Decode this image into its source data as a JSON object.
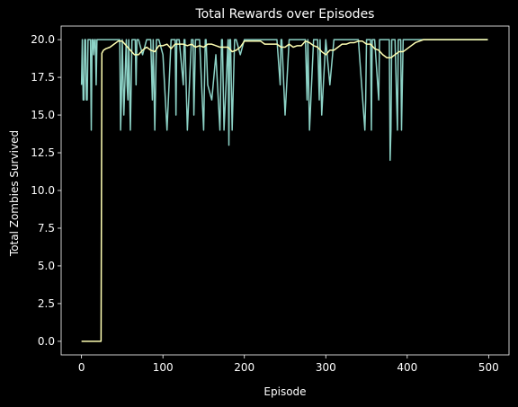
{
  "chart_data": {
    "type": "line",
    "title": "Total Rewards over Episodes",
    "xlabel": "Episode",
    "ylabel": "Total Zombies Survived",
    "xlim": [
      -25,
      525
    ],
    "ylim": [
      -0.9,
      20.9
    ],
    "xticks": [
      0,
      100,
      200,
      300,
      400,
      500
    ],
    "xtick_labels": [
      "0",
      "100",
      "200",
      "300",
      "400",
      "500"
    ],
    "yticks": [
      0,
      2.5,
      5,
      7.5,
      10,
      12.5,
      15,
      17.5,
      20
    ],
    "ytick_labels": [
      "0.0",
      "2.5",
      "5.0",
      "7.5",
      "10.0",
      "12.5",
      "15.0",
      "17.5",
      "20.0"
    ],
    "grid": false,
    "background": "#000000",
    "axis_color": "#ffffff",
    "series": [
      {
        "color": "#8dd3c7",
        "x": [
          0,
          1,
          2,
          3,
          4,
          5,
          6,
          7,
          8,
          9,
          10,
          11,
          12,
          13,
          14,
          15,
          16,
          17,
          18,
          19,
          20,
          21,
          22,
          23,
          24,
          25,
          30,
          40,
          45,
          47,
          48,
          49,
          50,
          52,
          55,
          56,
          57,
          58,
          60,
          62,
          64,
          65,
          66,
          67,
          68,
          69,
          70,
          75,
          80,
          85,
          87,
          88,
          90,
          92,
          93,
          95,
          100,
          105,
          110,
          115,
          116,
          117,
          120,
          125,
          126,
          127,
          130,
          135,
          137,
          138,
          140,
          145,
          150,
          152,
          153,
          155,
          160,
          165,
          170,
          172,
          173,
          175,
          180,
          181,
          182,
          183,
          185,
          188,
          190,
          195,
          200,
          205,
          210,
          220,
          230,
          240,
          244,
          245,
          246,
          250,
          255,
          256,
          257,
          260,
          270,
          275,
          277,
          278,
          280,
          285,
          290,
          292,
          293,
          295,
          300,
          305,
          310,
          315,
          320,
          330,
          340,
          348,
          349,
          350,
          355,
          356,
          357,
          360,
          365,
          366,
          367,
          370,
          378,
          379,
          380,
          381,
          382,
          385,
          388,
          389,
          390,
          392,
          393,
          395,
          400,
          405,
          410,
          415,
          420,
          430,
          440,
          450,
          460,
          470,
          480,
          490,
          499
        ],
        "y": [
          17,
          20,
          16,
          16,
          20,
          20,
          16,
          16,
          20,
          20,
          20,
          20,
          14,
          20,
          20,
          19,
          20,
          20,
          17,
          20,
          20,
          20,
          20,
          20,
          20,
          20,
          20,
          20,
          20,
          20,
          14,
          16,
          20,
          15,
          20,
          17,
          16,
          20,
          14,
          20,
          20,
          20,
          20,
          17,
          20,
          20,
          20,
          19,
          20,
          20,
          16,
          20,
          14,
          20,
          20,
          20,
          19,
          14,
          20,
          20,
          15,
          20,
          20,
          17,
          20,
          20,
          14,
          20,
          20,
          15,
          20,
          20,
          14,
          20,
          20,
          17,
          16,
          19,
          14,
          20,
          20,
          14,
          20,
          13,
          20,
          20,
          14,
          20,
          20,
          19,
          20,
          20,
          20,
          20,
          20,
          20,
          17,
          20,
          20,
          15,
          20,
          20,
          20,
          20,
          20,
          20,
          16,
          20,
          14,
          20,
          20,
          16,
          20,
          15,
          20,
          17,
          20,
          20,
          20,
          20,
          20,
          14,
          16,
          20,
          20,
          14,
          20,
          20,
          16,
          20,
          20,
          20,
          20,
          12,
          14,
          20,
          20,
          20,
          14,
          20,
          20,
          20,
          14,
          20,
          20,
          20,
          20,
          20,
          20,
          20,
          20,
          20,
          20,
          20,
          20,
          20,
          20
        ]
      },
      {
        "color": "#ffffb3",
        "x": [
          0,
          24,
          25,
          27,
          30,
          35,
          40,
          45,
          50,
          55,
          60,
          65,
          70,
          75,
          80,
          85,
          90,
          95,
          100,
          105,
          110,
          115,
          120,
          125,
          130,
          135,
          140,
          145,
          150,
          155,
          160,
          165,
          170,
          175,
          180,
          185,
          190,
          195,
          200,
          205,
          210,
          215,
          220,
          225,
          230,
          235,
          240,
          245,
          250,
          255,
          260,
          265,
          270,
          275,
          280,
          285,
          290,
          295,
          300,
          305,
          310,
          315,
          320,
          325,
          330,
          335,
          340,
          345,
          350,
          355,
          360,
          365,
          370,
          375,
          380,
          385,
          390,
          395,
          400,
          405,
          410,
          415,
          420,
          430,
          440,
          460,
          480,
          499
        ],
        "y": [
          0,
          0,
          19.1,
          19.3,
          19.4,
          19.5,
          19.7,
          19.9,
          19.9,
          19.6,
          19.3,
          19.0,
          19.0,
          19.3,
          19.5,
          19.3,
          19.2,
          19.6,
          19.6,
          19.7,
          19.4,
          19.7,
          19.7,
          19.7,
          19.6,
          19.7,
          19.5,
          19.6,
          19.5,
          19.7,
          19.7,
          19.6,
          19.5,
          19.5,
          19.5,
          19.2,
          19.3,
          19.5,
          19.9,
          19.9,
          19.9,
          19.9,
          19.9,
          19.7,
          19.7,
          19.7,
          19.7,
          19.5,
          19.5,
          19.7,
          19.5,
          19.6,
          19.6,
          19.9,
          19.8,
          19.6,
          19.5,
          19.2,
          19.0,
          19.3,
          19.3,
          19.5,
          19.7,
          19.7,
          19.8,
          19.8,
          19.9,
          19.9,
          19.7,
          19.7,
          19.4,
          19.3,
          19.0,
          18.8,
          18.8,
          19.0,
          19.2,
          19.2,
          19.4,
          19.6,
          19.8,
          19.9,
          20,
          20,
          20,
          20,
          20,
          20
        ]
      }
    ]
  }
}
